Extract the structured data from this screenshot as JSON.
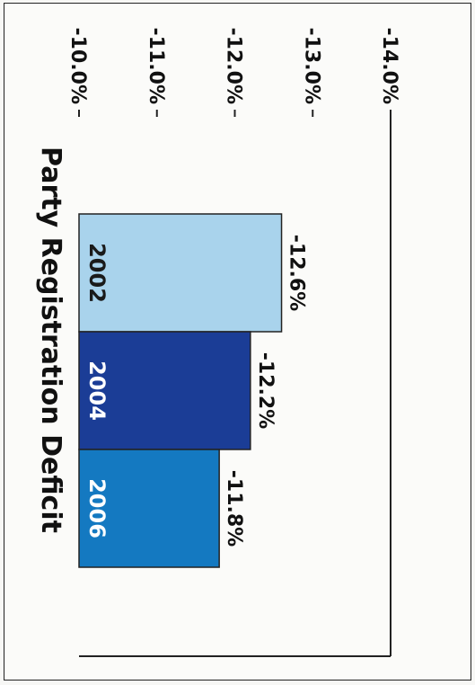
{
  "chart_data": {
    "type": "bar",
    "orientation": "horizontal",
    "rotated": "90deg-clockwise",
    "title": "Party Registration Deficit",
    "categories": [
      "2002",
      "2004",
      "2006"
    ],
    "values": [
      -12.6,
      -12.2,
      -11.8
    ],
    "value_labels": [
      "-12.6%",
      "-12.2%",
      "-11.8%"
    ],
    "xlabel": "",
    "ylabel": "",
    "xlim": [
      -14.0,
      -10.0
    ],
    "ticks": [
      -14.0,
      -13.0,
      -12.0,
      -11.0,
      -10.0
    ],
    "tick_labels": [
      "-14.0%",
      "-13.0%",
      "-12.0%",
      "-11.0%",
      "-10.0%"
    ],
    "grid": false,
    "legend": "none",
    "colors": [
      "#a9d3ec",
      "#1b3d96",
      "#1479c1"
    ],
    "category_label_colors": [
      "#1a1a1a",
      "#ffffff",
      "#ffffff"
    ]
  }
}
